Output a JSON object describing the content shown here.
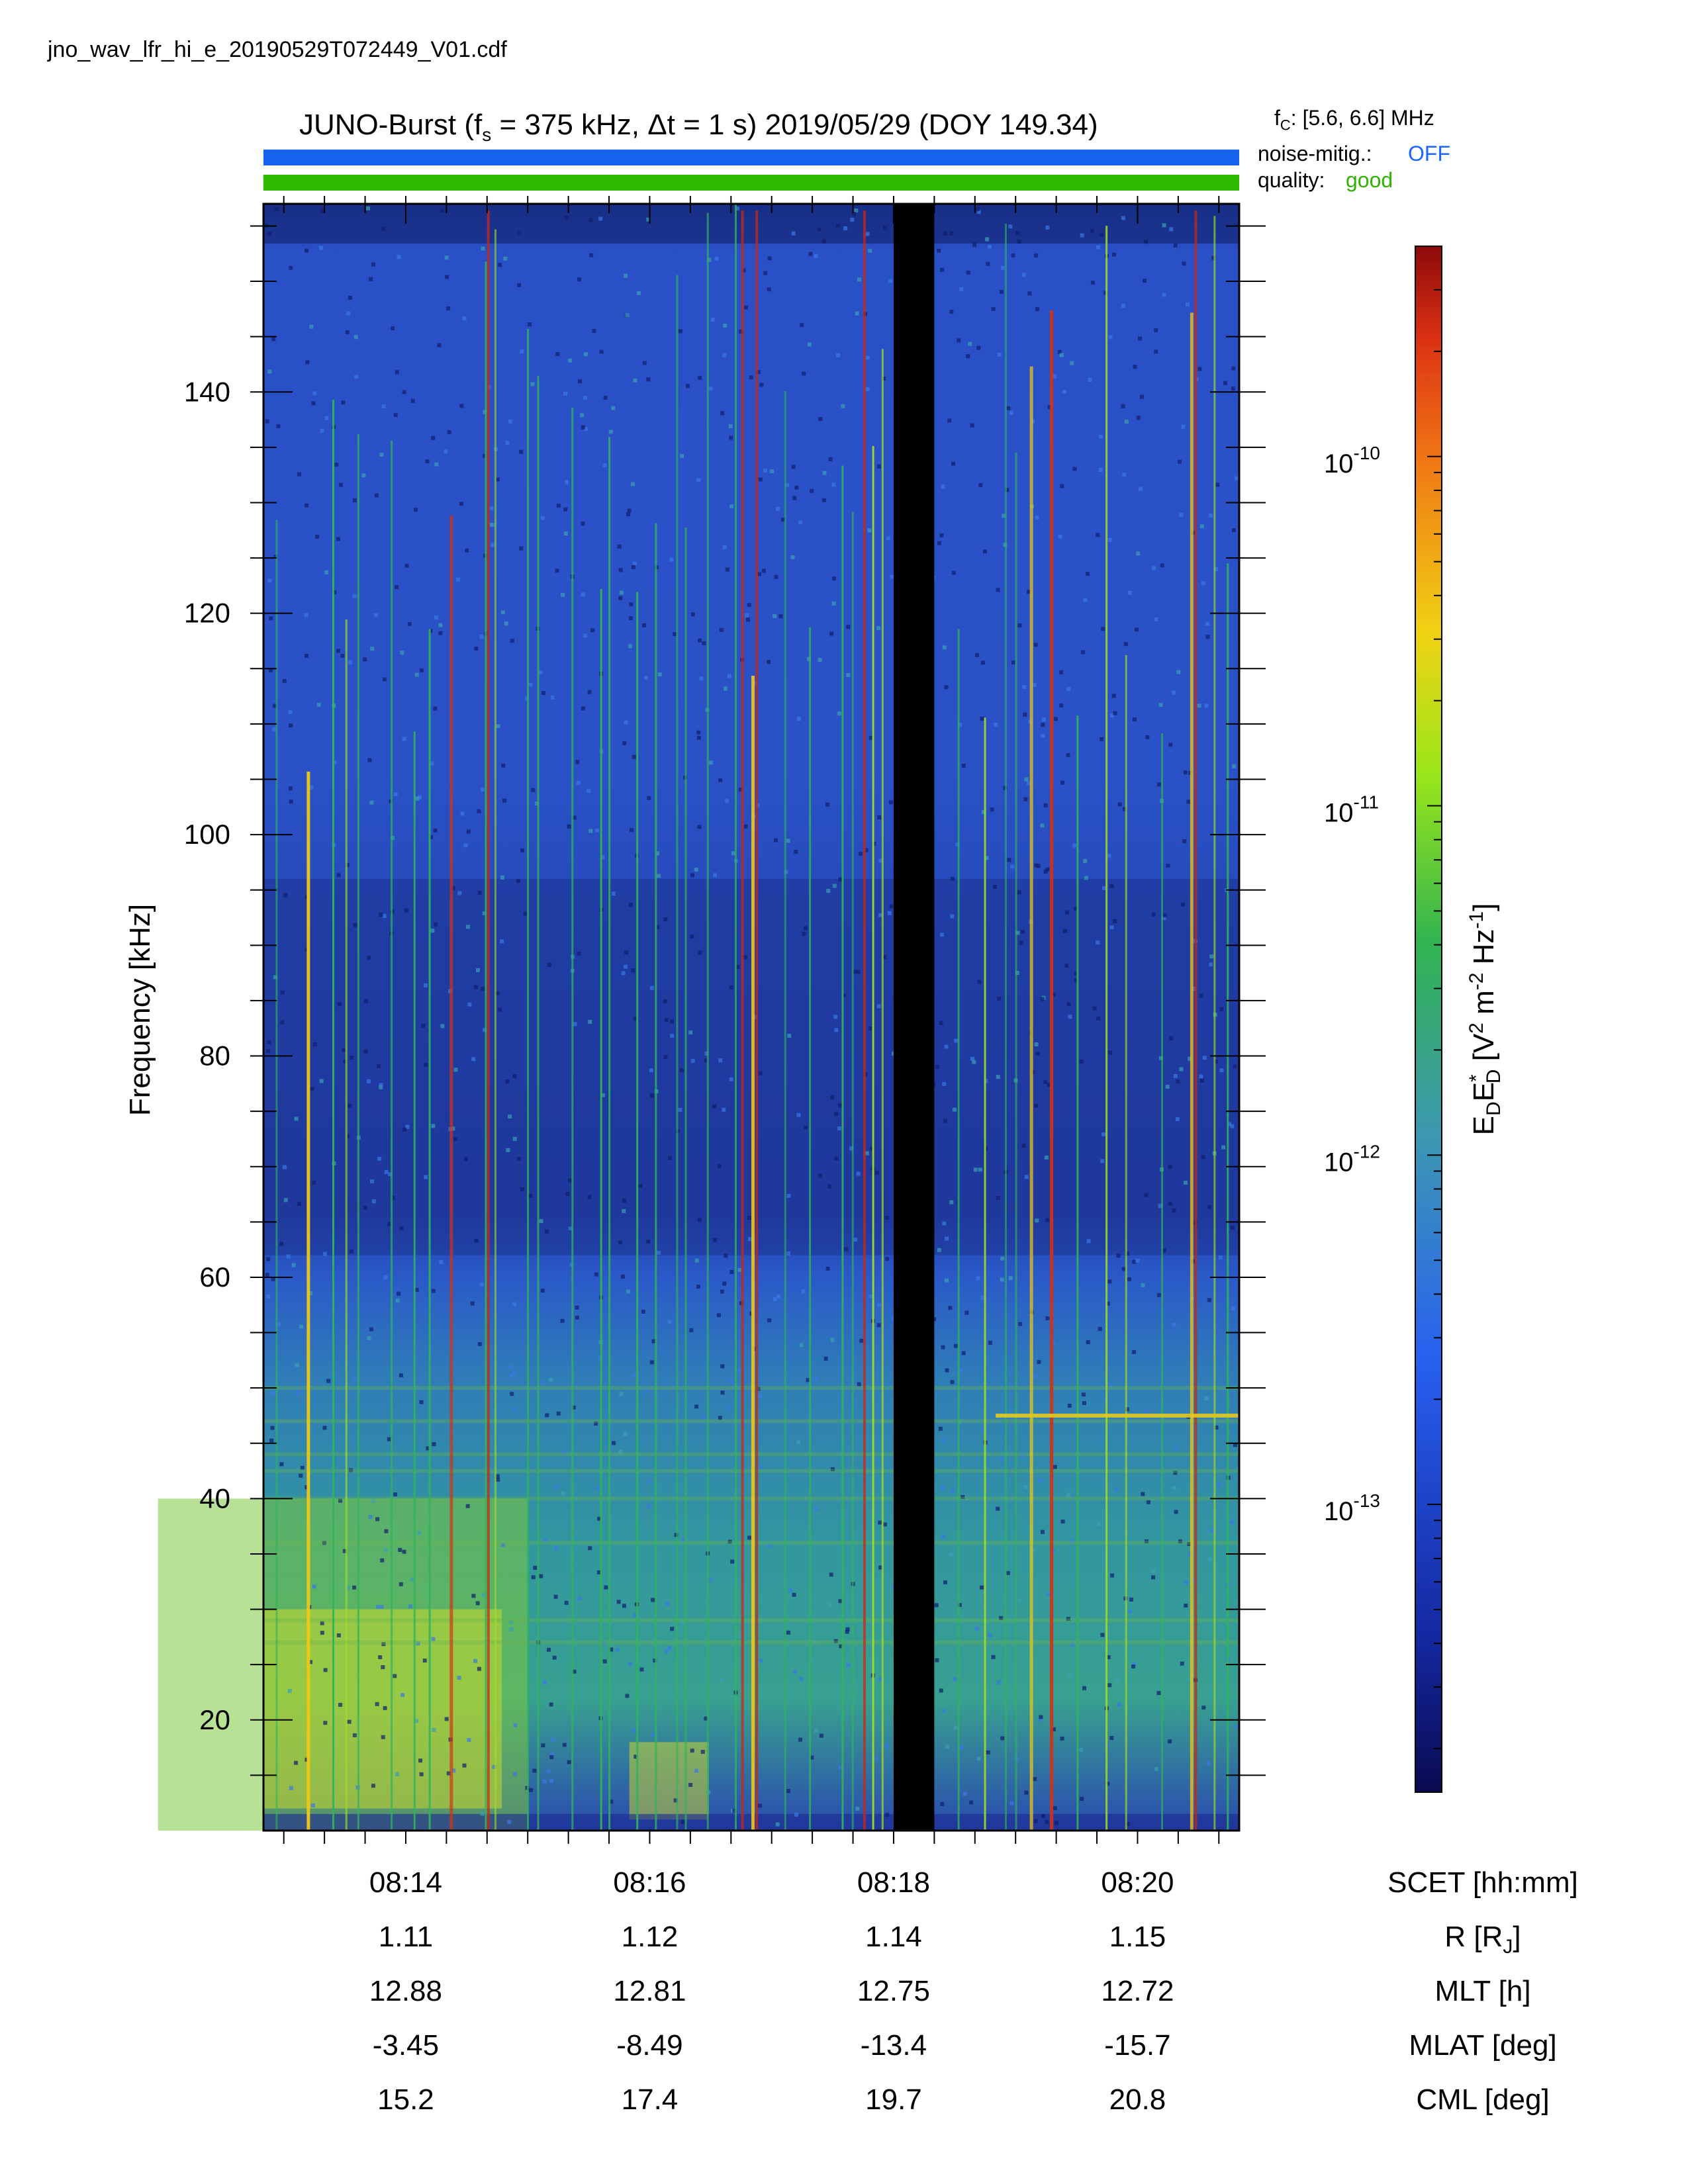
{
  "header": {
    "filename": "jno_wav_lfr_hi_e_20190529T072449_V01.cdf",
    "title_prefix": "JUNO-Burst (f",
    "title_sub": "s",
    "title_rest": " = 375 kHz, Δt = 1 s)  2019/05/29 (DOY 149.34)",
    "fc_prefix": "f",
    "fc_sub": "C",
    "fc_rest": ": [5.6, 6.6] MHz",
    "noise_label": "noise-mitig.:",
    "noise_value": "OFF",
    "quality_label": "quality:",
    "quality_value": "good"
  },
  "colors": {
    "noise_bar": "#1464f0",
    "quality_bar": "#2dbb00",
    "noise_value": "#1a66ff",
    "quality_value": "#2db300"
  },
  "chart_data": {
    "type": "heatmap",
    "title": "JUNO-Burst (fs = 375 kHz, Δt = 1 s) 2019/05/29 (DOY 149.34)",
    "xlabel": "SCET [hh:mm]",
    "ylabel": "Frequency [kHz]",
    "ylim": [
      10,
      157
    ],
    "xlim": [
      "08:12:50",
      "08:20:50"
    ],
    "x_ticks": [
      "08:14",
      "08:16",
      "08:18",
      "08:20"
    ],
    "y_ticks": [
      20,
      40,
      60,
      80,
      100,
      120,
      140
    ],
    "colorbar": {
      "label": "EDE*D [V² m⁻² Hz⁻¹]",
      "label_parts": {
        "a": "E",
        "b": "D",
        "c": "E",
        "d": "*",
        "e": "D",
        "f": " [V",
        "g": "2",
        "h": " m",
        "i": "-2",
        "j": " Hz",
        "k": "-1",
        "l": "]"
      },
      "scale": "log",
      "range": [
        1.5e-14,
        4e-10
      ],
      "ticks": [
        {
          "mantissa": "10",
          "exponent": "-10",
          "value": 1e-10
        },
        {
          "mantissa": "10",
          "exponent": "-11",
          "value": 1e-11
        },
        {
          "mantissa": "10",
          "exponent": "-12",
          "value": 1e-12
        },
        {
          "mantissa": "10",
          "exponent": "-13",
          "value": 1e-13
        }
      ],
      "colormap": "rainbow (dark blue → blue → green → yellow → orange → dark red)"
    },
    "data_gap": {
      "start": "08:18:00",
      "end": "08:18:20"
    },
    "features": {
      "background_noise_band_kHz": [
        10,
        60
      ],
      "enhanced_emission_region": {
        "time": [
          "08:13",
          "08:15"
        ],
        "freq_kHz": [
          10,
          40
        ]
      },
      "narrowband_line_kHz": 47.5,
      "narrowband_line_time": [
        "08:19:00",
        "08:20:50"
      ],
      "vertical_impulsive_bursts": true
    }
  },
  "ephemeris": {
    "columns": [
      "08:14",
      "08:16",
      "08:18",
      "08:20"
    ],
    "rows": [
      {
        "label": "SCET [hh:mm]",
        "values": [
          "08:14",
          "08:16",
          "08:18",
          "08:20"
        ]
      },
      {
        "label": "R [RJ]",
        "label_main": "R [R",
        "label_sub": "J",
        "label_end": "]",
        "values": [
          "1.11",
          "1.12",
          "1.14",
          "1.15"
        ]
      },
      {
        "label": "MLT [h]",
        "values": [
          "12.88",
          "12.81",
          "12.75",
          "12.72"
        ]
      },
      {
        "label": "MLAT [deg]",
        "values": [
          "-3.45",
          "-8.49",
          "-13.4",
          "-15.7"
        ]
      },
      {
        "label": "CML [deg]",
        "values": [
          "15.2",
          "17.4",
          "19.7",
          "20.8"
        ]
      }
    ]
  }
}
